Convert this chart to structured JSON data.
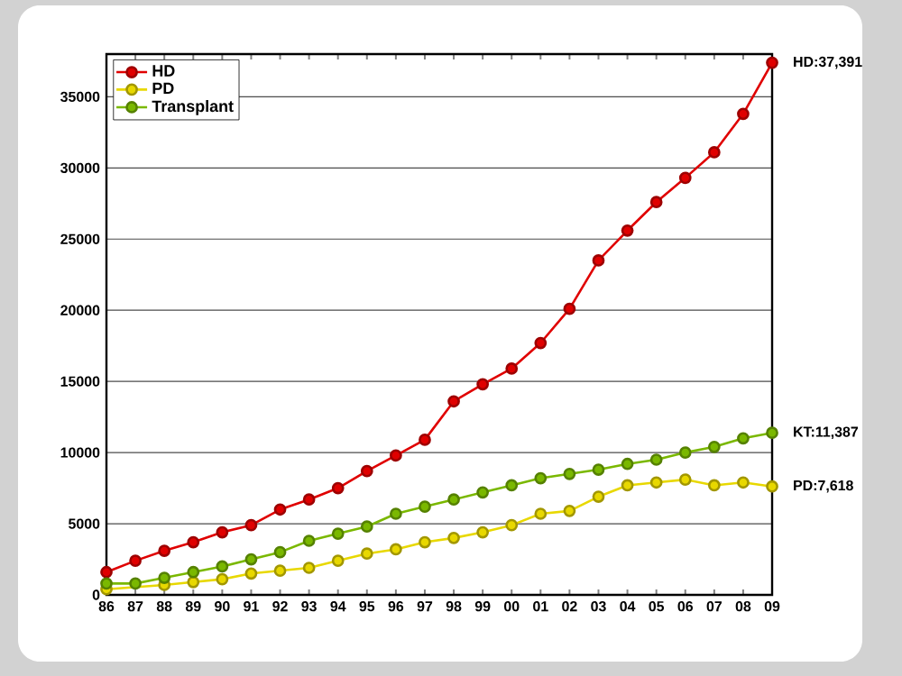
{
  "chart_data": {
    "type": "line",
    "categories": [
      "86",
      "87",
      "88",
      "89",
      "90",
      "91",
      "92",
      "93",
      "94",
      "95",
      "96",
      "97",
      "98",
      "99",
      "00",
      "01",
      "02",
      "03",
      "04",
      "05",
      "06",
      "07",
      "08",
      "09"
    ],
    "series": [
      {
        "name": "HD",
        "color": "#e00000",
        "values": [
          1600,
          2400,
          3100,
          3700,
          4400,
          4900,
          6000,
          6700,
          7500,
          8700,
          9800,
          10900,
          13600,
          14800,
          15900,
          17700,
          20100,
          23500,
          25600,
          27600,
          29300,
          31100,
          33800,
          37391
        ]
      },
      {
        "name": "PD",
        "color": "#e8d800",
        "values": [
          400,
          null,
          700,
          900,
          1100,
          1500,
          1700,
          1900,
          2400,
          2900,
          3200,
          3700,
          4000,
          4400,
          4900,
          5700,
          5900,
          6900,
          7700,
          7900,
          8100,
          7700,
          7900,
          7618
        ]
      },
      {
        "name": "Transplant",
        "color": "#7ab800",
        "values": [
          800,
          800,
          1200,
          1600,
          2000,
          2500,
          3000,
          3800,
          4300,
          4800,
          5700,
          6200,
          6700,
          7200,
          7700,
          8200,
          8500,
          8800,
          9200,
          9500,
          10000,
          10400,
          11000,
          11387
        ]
      }
    ],
    "ylim": [
      0,
      38000
    ],
    "yticks": [
      0,
      5000,
      10000,
      15000,
      20000,
      25000,
      30000,
      35000
    ],
    "grid": "y",
    "legend": "top left",
    "marker": "circle",
    "line_style": "solid",
    "annotations": [
      {
        "text": "HD:37,391",
        "x": "09",
        "y": 37391
      },
      {
        "text": "KT:11,387",
        "x": "09",
        "y": 11387
      },
      {
        "text": "PD:7,618",
        "x": "09",
        "y": 7618
      }
    ]
  }
}
